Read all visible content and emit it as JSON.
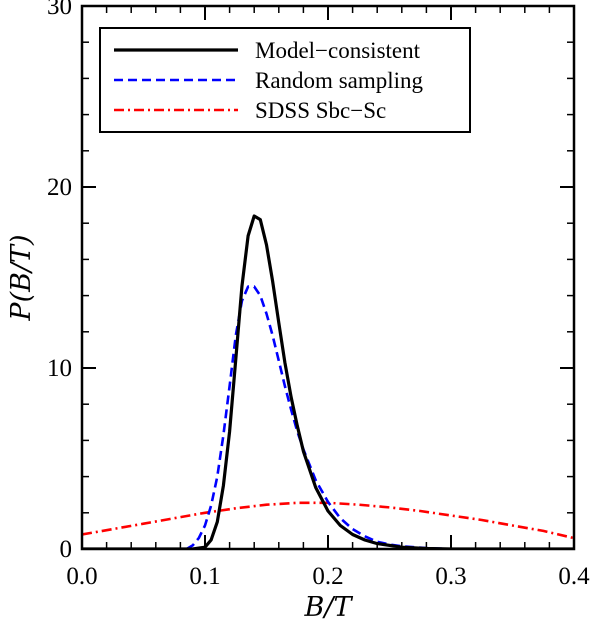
{
  "chart_data": {
    "type": "line",
    "xlabel": "B/T",
    "ylabel": "P(B/T)",
    "xlim": [
      0.0,
      0.4
    ],
    "ylim": [
      0,
      30
    ],
    "x_ticks": [
      "0.0",
      "0.1",
      "0.2",
      "0.3",
      "0.4"
    ],
    "y_ticks": [
      "0",
      "10",
      "20",
      "30"
    ],
    "x_tick_values": [
      0.0,
      0.1,
      0.2,
      0.3,
      0.4
    ],
    "y_tick_values": [
      0,
      10,
      20,
      30
    ],
    "grid": false,
    "legend_placement": "top-left",
    "series": [
      {
        "name": "Model−consistent",
        "color": "#000000",
        "style": "solid",
        "x": [
          0.0,
          0.09,
          0.1,
          0.105,
          0.11,
          0.115,
          0.12,
          0.125,
          0.13,
          0.135,
          0.14,
          0.145,
          0.15,
          0.155,
          0.16,
          0.165,
          0.17,
          0.175,
          0.18,
          0.19,
          0.2,
          0.21,
          0.22,
          0.23,
          0.24,
          0.26,
          0.28,
          0.3,
          0.4
        ],
        "y": [
          0.0,
          0.0,
          0.1,
          0.5,
          1.5,
          3.5,
          6.5,
          10.5,
          14.5,
          17.3,
          18.4,
          18.2,
          16.8,
          14.8,
          12.5,
          10.3,
          8.4,
          6.8,
          5.4,
          3.4,
          2.1,
          1.3,
          0.8,
          0.5,
          0.3,
          0.1,
          0.03,
          0.0,
          0.0
        ]
      },
      {
        "name": "Random sampling",
        "color": "#0000ff",
        "style": "dashed",
        "x": [
          0.085,
          0.09,
          0.095,
          0.1,
          0.105,
          0.11,
          0.115,
          0.12,
          0.125,
          0.13,
          0.135,
          0.14,
          0.145,
          0.15,
          0.155,
          0.16,
          0.165,
          0.17,
          0.175,
          0.18,
          0.19,
          0.2,
          0.21,
          0.22,
          0.23,
          0.24,
          0.25,
          0.26,
          0.28,
          0.3
        ],
        "y": [
          0.0,
          0.2,
          0.6,
          1.3,
          2.4,
          4.0,
          6.3,
          9.0,
          11.8,
          13.7,
          14.5,
          14.5,
          14.0,
          13.0,
          11.8,
          10.4,
          9.0,
          7.7,
          6.5,
          5.5,
          3.8,
          2.6,
          1.7,
          1.1,
          0.7,
          0.4,
          0.25,
          0.15,
          0.05,
          0.0
        ]
      },
      {
        "name": "SDSS Sbc−Sc",
        "color": "#ff0000",
        "style": "dash-dot",
        "x": [
          0.0,
          0.025,
          0.05,
          0.075,
          0.1,
          0.125,
          0.15,
          0.175,
          0.2,
          0.225,
          0.25,
          0.275,
          0.3,
          0.325,
          0.35,
          0.375,
          0.4
        ],
        "y": [
          0.8,
          1.1,
          1.4,
          1.7,
          2.0,
          2.25,
          2.45,
          2.55,
          2.55,
          2.45,
          2.3,
          2.1,
          1.85,
          1.6,
          1.3,
          1.0,
          0.6
        ]
      }
    ]
  }
}
